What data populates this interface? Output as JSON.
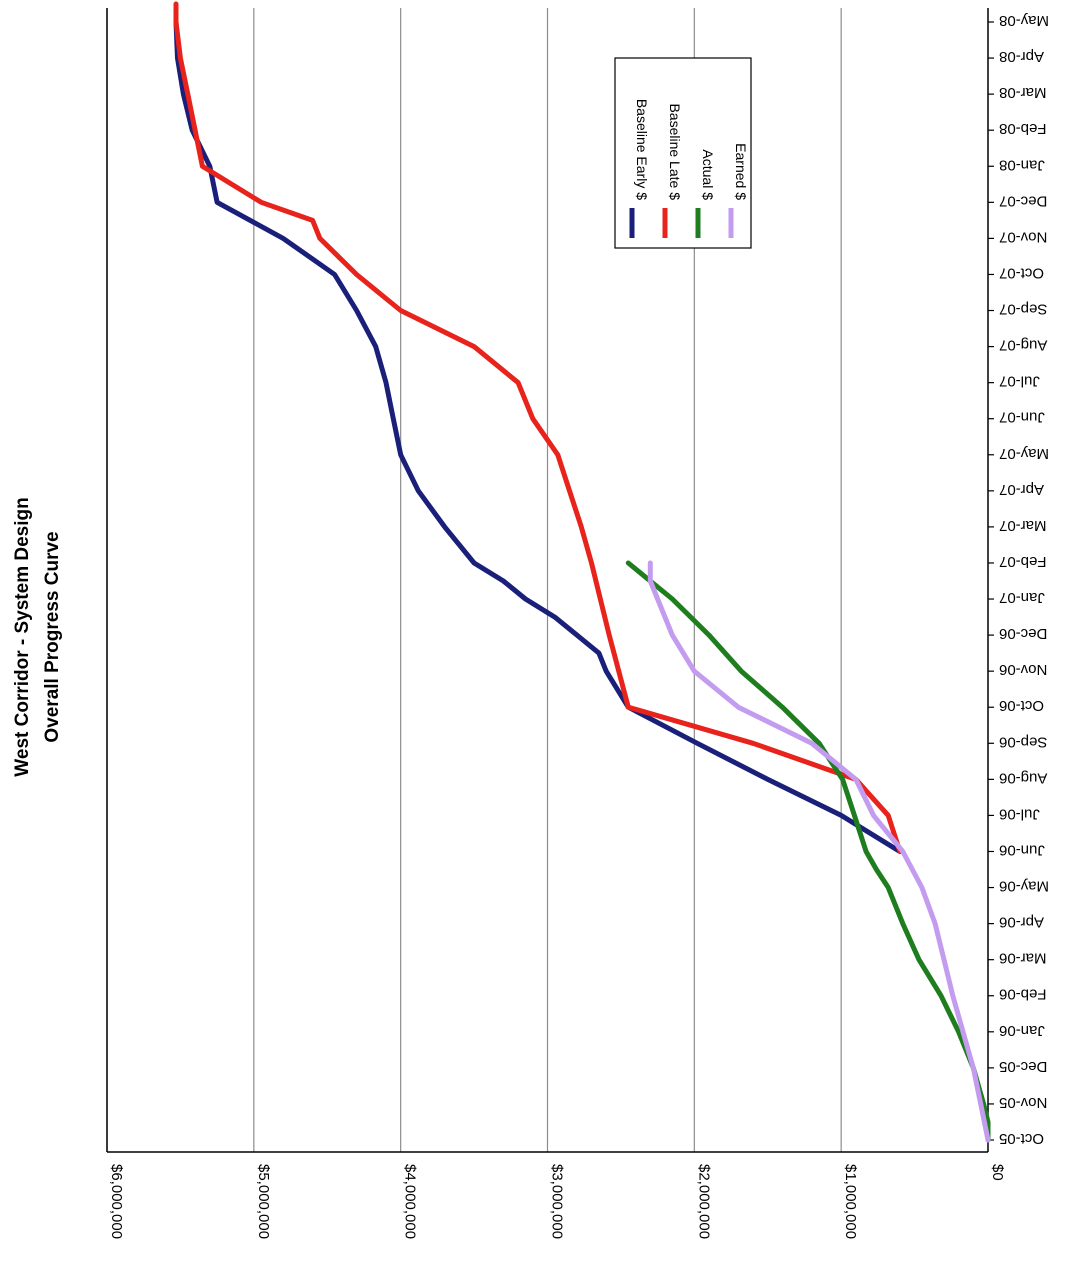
{
  "chart_data": {
    "type": "line",
    "title": "West Corridor - System Design",
    "subtitle": "Overall Progress Curve",
    "orientation": "rotated 90 degrees clockwise",
    "categories": [
      "Oct-05",
      "Nov-05",
      "Dec-05",
      "Jan-06",
      "Feb-06",
      "Mar-06",
      "Apr-06",
      "May-06",
      "Jun-06",
      "Jul-06",
      "Aug-06",
      "Sep-06",
      "Oct-06",
      "Nov-06",
      "Dec-06",
      "Jan-07",
      "Feb-07",
      "Mar-07",
      "Apr-07",
      "May-07",
      "Jun-07",
      "Jul-07",
      "Aug-07",
      "Sep-07",
      "Oct-07",
      "Nov-07",
      "Dec-07",
      "Jan-08",
      "Feb-08",
      "Mar-08",
      "Apr-08",
      "May-08"
    ],
    "y_ticks": [
      "$0",
      "$1,000,000",
      "$2,000,000",
      "$3,000,000",
      "$4,000,000",
      "$5,000,000",
      "$6,000,000"
    ],
    "ylim": [
      0,
      6000000
    ],
    "grid": true,
    "legend_position": "top-right",
    "colors": {
      "Baseline Early $": "#1a1f7a",
      "Baseline Late $": "#e8231c",
      "Actual $": "#1e7d1e",
      "Earned $": "#c39cf0",
      "grid": "#8c8c8c",
      "axis": "#000000"
    },
    "series": [
      {
        "name": "Baseline Early $",
        "x": [
          8.0,
          9.0,
          10.0,
          11.0,
          12.0,
          13.0,
          13.5,
          14.0,
          14.5,
          15.0,
          15.5,
          16.0,
          17.0,
          18.0,
          19.0,
          20.0,
          21.0,
          22.0,
          23.0,
          24.0,
          25.0,
          26.0,
          27.0,
          28.0,
          29.0,
          30.0,
          31.0
        ],
        "values": [
          600000,
          1000000,
          1500000,
          1980000,
          2450000,
          2600000,
          2650000,
          2800000,
          2950000,
          3150000,
          3300000,
          3500000,
          3700000,
          3880000,
          4000000,
          4050000,
          4100000,
          4170000,
          4300000,
          4450000,
          4800000,
          5250000,
          5300000,
          5420000,
          5480000,
          5520000,
          5530000
        ]
      },
      {
        "name": "Baseline Late $",
        "x": [
          8.0,
          9.0,
          10.0,
          11.0,
          12.0,
          14.0,
          16.0,
          17.0,
          18.0,
          19.0,
          20.0,
          21.0,
          22.0,
          23.0,
          24.0,
          25.0,
          25.5,
          26.0,
          27.0,
          28.0,
          29.0,
          30.0,
          31.0,
          31.5
        ],
        "values": [
          600000,
          680000,
          900000,
          1600000,
          2450000,
          2580000,
          2700000,
          2770000,
          2850000,
          2930000,
          3100000,
          3200000,
          3500000,
          4000000,
          4300000,
          4550000,
          4600000,
          4950000,
          5350000,
          5400000,
          5450000,
          5500000,
          5530000,
          5530000
        ]
      },
      {
        "name": "Actual $",
        "x": [
          0,
          0.5,
          1.0,
          2.0,
          3.0,
          4.0,
          5.0,
          6.0,
          7.0,
          7.5,
          8.0,
          9.0,
          10.0,
          11.0,
          12.0,
          13.0,
          14.0,
          15.0,
          16.0
        ],
        "values": [
          0,
          0,
          30000,
          100000,
          200000,
          320000,
          470000,
          580000,
          680000,
          760000,
          830000,
          910000,
          990000,
          1150000,
          1400000,
          1680000,
          1900000,
          2150000,
          2450000
        ]
      },
      {
        "name": "Earned $",
        "x": [
          0,
          1.0,
          2.0,
          3.0,
          4.0,
          5.0,
          6.0,
          7.0,
          8.0,
          9.0,
          10.0,
          11.0,
          12.0,
          13.0,
          14.0,
          15.0,
          15.5,
          16.0
        ],
        "values": [
          0,
          50000,
          100000,
          170000,
          240000,
          300000,
          360000,
          450000,
          580000,
          780000,
          900000,
          1200000,
          1700000,
          2000000,
          2150000,
          2250000,
          2300000,
          2300000
        ]
      }
    ]
  }
}
